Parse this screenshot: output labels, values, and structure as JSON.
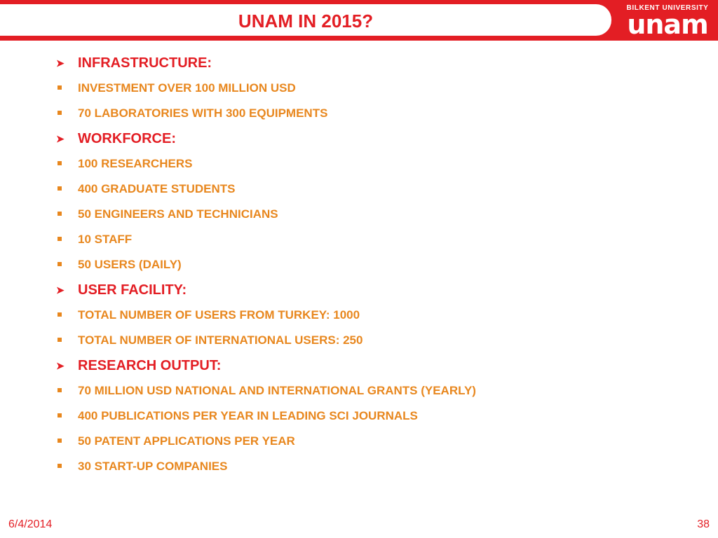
{
  "slide": {
    "title": "UNAM IN 2015?",
    "logo": {
      "top_text": "BILKENT UNIVERSITY",
      "main_text": "unam"
    },
    "colors": {
      "accent": "#e31e24",
      "bullet_text": "#e8871e"
    },
    "sections": [
      {
        "heading": "INFRASTRUCTURE:",
        "items": [
          "INVESTMENT OVER 100 MILLION USD",
          "70 LABORATORIES WITH 300 EQUIPMENTS"
        ]
      },
      {
        "heading": "WORKFORCE:",
        "items": [
          "100 RESEARCHERS",
          "400 GRADUATE STUDENTS",
          "50 ENGINEERS AND TECHNICIANS",
          "10 STAFF",
          "50 USERS (DAILY)"
        ]
      },
      {
        "heading": "USER FACILITY:",
        "items": [
          "TOTAL NUMBER OF USERS FROM TURKEY: 1000",
          "TOTAL NUMBER OF INTERNATIONAL USERS: 250"
        ]
      },
      {
        "heading": "RESEARCH OUTPUT:",
        "items": [
          "70 MILLION USD  NATIONAL AND INTERNATIONAL GRANTS  (YEARLY)",
          "400 PUBLICATIONS  PER YEAR IN LEADING SCI JOURNALS",
          "50 PATENT APPLICATIONS PER YEAR",
          "30 START-UP COMPANIES"
        ]
      }
    ],
    "footer": {
      "date": "6/4/2014",
      "page_number": "38"
    }
  }
}
